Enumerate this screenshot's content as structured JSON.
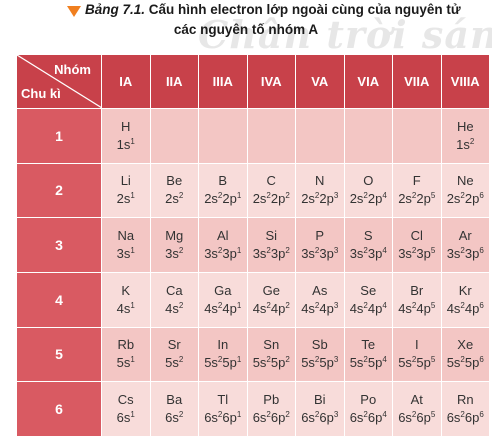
{
  "caption": {
    "label": "Bảng 7.1.",
    "title_line1": "Cấu hình electron lớp ngoài cùng của nguyên tử",
    "title_line2": "các nguyên tố nhóm A",
    "watermark": "Chân trời sáng tạo"
  },
  "table": {
    "corner_top": "Nhóm",
    "corner_bottom": "Chu kì",
    "groups": [
      "IA",
      "IIA",
      "IIIA",
      "IVA",
      "VA",
      "VIA",
      "VIIA",
      "VIIIA"
    ],
    "rows": [
      {
        "period": "1",
        "cells": [
          {
            "sym": "H",
            "cfg": "1s^1"
          },
          null,
          null,
          null,
          null,
          null,
          null,
          {
            "sym": "He",
            "cfg": "1s^2"
          }
        ]
      },
      {
        "period": "2",
        "cells": [
          {
            "sym": "Li",
            "cfg": "2s^1"
          },
          {
            "sym": "Be",
            "cfg": "2s^2"
          },
          {
            "sym": "B",
            "cfg": "2s^22p^1"
          },
          {
            "sym": "C",
            "cfg": "2s^22p^2"
          },
          {
            "sym": "N",
            "cfg": "2s^22p^3"
          },
          {
            "sym": "O",
            "cfg": "2s^22p^4"
          },
          {
            "sym": "F",
            "cfg": "2s^22p^5"
          },
          {
            "sym": "Ne",
            "cfg": "2s^22p^6"
          }
        ]
      },
      {
        "period": "3",
        "cells": [
          {
            "sym": "Na",
            "cfg": "3s^1"
          },
          {
            "sym": "Mg",
            "cfg": "3s^2"
          },
          {
            "sym": "Al",
            "cfg": "3s^23p^1"
          },
          {
            "sym": "Si",
            "cfg": "3s^23p^2"
          },
          {
            "sym": "P",
            "cfg": "3s^23p^3"
          },
          {
            "sym": "S",
            "cfg": "3s^23p^4"
          },
          {
            "sym": "Cl",
            "cfg": "3s^23p^5"
          },
          {
            "sym": "Ar",
            "cfg": "3s^23p^6"
          }
        ]
      },
      {
        "period": "4",
        "cells": [
          {
            "sym": "K",
            "cfg": "4s^1"
          },
          {
            "sym": "Ca",
            "cfg": "4s^2"
          },
          {
            "sym": "Ga",
            "cfg": "4s^24p^1"
          },
          {
            "sym": "Ge",
            "cfg": "4s^24p^2"
          },
          {
            "sym": "As",
            "cfg": "4s^24p^3"
          },
          {
            "sym": "Se",
            "cfg": "4s^24p^4"
          },
          {
            "sym": "Br",
            "cfg": "4s^24p^5"
          },
          {
            "sym": "Kr",
            "cfg": "4s^24p^6"
          }
        ]
      },
      {
        "period": "5",
        "cells": [
          {
            "sym": "Rb",
            "cfg": "5s^1"
          },
          {
            "sym": "Sr",
            "cfg": "5s^2"
          },
          {
            "sym": "In",
            "cfg": "5s^25p^1"
          },
          {
            "sym": "Sn",
            "cfg": "5s^25p^2"
          },
          {
            "sym": "Sb",
            "cfg": "5s^25p^3"
          },
          {
            "sym": "Te",
            "cfg": "5s^25p^4"
          },
          {
            "sym": "I",
            "cfg": "5s^25p^5"
          },
          {
            "sym": "Xe",
            "cfg": "5s^25p^6"
          }
        ]
      },
      {
        "period": "6",
        "cells": [
          {
            "sym": "Cs",
            "cfg": "6s^1"
          },
          {
            "sym": "Ba",
            "cfg": "6s^2"
          },
          {
            "sym": "Tl",
            "cfg": "6s^26p^1"
          },
          {
            "sym": "Pb",
            "cfg": "6s^26p^2"
          },
          {
            "sym": "Bi",
            "cfg": "6s^26p^3"
          },
          {
            "sym": "Po",
            "cfg": "6s^26p^4"
          },
          {
            "sym": "At",
            "cfg": "6s^26p^5"
          },
          {
            "sym": "Rn",
            "cfg": "6s^26p^6"
          }
        ]
      }
    ]
  },
  "colors": {
    "header": "#c8414a",
    "period_col": "#d95a62",
    "row_odd": "#f3c6c4",
    "row_even": "#f8dcda",
    "caption_marker": "#f07f1f"
  }
}
